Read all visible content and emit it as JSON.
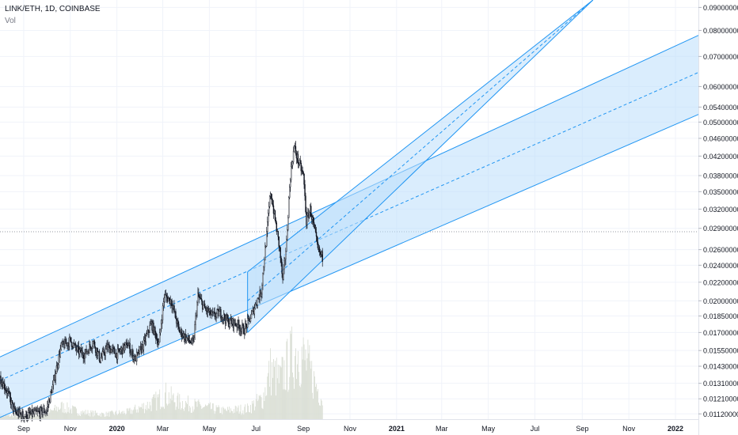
{
  "header": {
    "symbol_line": "LINK/ETH, 1D, COINBASE",
    "indicator": "Vol"
  },
  "colors": {
    "grid": "#f0f3fa",
    "channel_line": "#2196f3",
    "channel_fill": "#bbdefb",
    "candle": "#131722",
    "volume": "#d6dbd0",
    "axis_text": "#131722",
    "price_marker_line": "#9598a1"
  },
  "chart_data": {
    "type": "candlestick",
    "x_axis": {
      "tick_labels": [
        "Sep",
        "Nov",
        "2020",
        "Mar",
        "May",
        "Jul",
        "Sep",
        "Nov",
        "2021",
        "Mar",
        "May",
        "Jul",
        "Sep",
        "Nov",
        "2022"
      ],
      "range": [
        "2019-08-01",
        "2022-01-31"
      ]
    },
    "y_axis": {
      "scale": "log",
      "range": [
        0.0109,
        0.0935
      ],
      "tick_labels": [
        "0.01120000",
        "0.01210000",
        "0.01310000",
        "0.01430000",
        "0.01550000",
        "0.01700000",
        "0.01850000",
        "0.02000000",
        "0.02200000",
        "0.02400000",
        "0.02600000",
        "0.02900000",
        "0.03200000",
        "0.03500000",
        "0.03800000",
        "0.04200000",
        "0.04600000",
        "0.05000000",
        "0.05400000",
        "0.06000000",
        "0.07000000",
        "0.08000000",
        "0.09000000"
      ]
    },
    "price_series": [
      [
        "2019-08-01",
        0.0135
      ],
      [
        "2019-08-10",
        0.0126
      ],
      [
        "2019-08-20",
        0.0113
      ],
      [
        "2019-09-01",
        0.0111
      ],
      [
        "2019-09-15",
        0.0112
      ],
      [
        "2019-10-01",
        0.0114
      ],
      [
        "2019-10-10",
        0.0131
      ],
      [
        "2019-10-20",
        0.0158
      ],
      [
        "2019-11-01",
        0.0163
      ],
      [
        "2019-11-10",
        0.0155
      ],
      [
        "2019-11-20",
        0.0152
      ],
      [
        "2019-12-01",
        0.0162
      ],
      [
        "2019-12-10",
        0.0148
      ],
      [
        "2019-12-20",
        0.0158
      ],
      [
        "2020-01-01",
        0.0152
      ],
      [
        "2020-01-15",
        0.016
      ],
      [
        "2020-01-25",
        0.0148
      ],
      [
        "2020-02-05",
        0.016
      ],
      [
        "2020-02-15",
        0.0178
      ],
      [
        "2020-02-25",
        0.016
      ],
      [
        "2020-03-03",
        0.0205
      ],
      [
        "2020-03-12",
        0.02
      ],
      [
        "2020-03-22",
        0.0172
      ],
      [
        "2020-04-01",
        0.0165
      ],
      [
        "2020-04-10",
        0.016
      ],
      [
        "2020-04-16",
        0.0205
      ],
      [
        "2020-04-25",
        0.0192
      ],
      [
        "2020-05-05",
        0.0185
      ],
      [
        "2020-05-15",
        0.0188
      ],
      [
        "2020-05-25",
        0.018
      ],
      [
        "2020-06-05",
        0.0178
      ],
      [
        "2020-06-15",
        0.0172
      ],
      [
        "2020-06-25",
        0.0185
      ],
      [
        "2020-07-01",
        0.0198
      ],
      [
        "2020-07-08",
        0.021
      ],
      [
        "2020-07-15",
        0.028
      ],
      [
        "2020-07-20",
        0.035
      ],
      [
        "2020-07-25",
        0.031
      ],
      [
        "2020-08-01",
        0.026
      ],
      [
        "2020-08-05",
        0.022
      ],
      [
        "2020-08-10",
        0.027
      ],
      [
        "2020-08-15",
        0.038
      ],
      [
        "2020-08-20",
        0.044
      ],
      [
        "2020-08-25",
        0.041
      ],
      [
        "2020-09-01",
        0.038
      ],
      [
        "2020-09-05",
        0.03
      ],
      [
        "2020-09-10",
        0.032
      ],
      [
        "2020-09-15",
        0.029
      ],
      [
        "2020-09-20",
        0.026
      ],
      [
        "2020-09-26",
        0.025
      ]
    ],
    "volume_series": [
      [
        "2019-08-01",
        0.05
      ],
      [
        "2019-09-01",
        0.05
      ],
      [
        "2019-10-01",
        0.08
      ],
      [
        "2019-10-20",
        0.18
      ],
      [
        "2019-11-15",
        0.1
      ],
      [
        "2019-12-15",
        0.07
      ],
      [
        "2020-01-15",
        0.1
      ],
      [
        "2020-02-15",
        0.22
      ],
      [
        "2020-03-05",
        0.35
      ],
      [
        "2020-03-20",
        0.25
      ],
      [
        "2020-04-20",
        0.18
      ],
      [
        "2020-05-20",
        0.12
      ],
      [
        "2020-06-20",
        0.15
      ],
      [
        "2020-07-10",
        0.3
      ],
      [
        "2020-07-20",
        0.7
      ],
      [
        "2020-08-01",
        0.55
      ],
      [
        "2020-08-15",
        0.85
      ],
      [
        "2020-08-25",
        1.0
      ],
      [
        "2020-09-05",
        0.8
      ],
      [
        "2020-09-15",
        0.55
      ],
      [
        "2020-09-26",
        0.3
      ]
    ],
    "channels": [
      {
        "start": "2019-08-01",
        "end": "2022-01-31",
        "upper": [
          0.015,
          0.078
        ],
        "mid": [
          0.0133,
          0.0645
        ],
        "lower": [
          0.011,
          0.052
        ]
      },
      {
        "start": "2020-06-20",
        "end": "2021-09-15",
        "upper": [
          0.0232,
          0.0935
        ],
        "mid": [
          0.02,
          0.0935
        ],
        "lower": [
          0.017,
          0.0935
        ]
      }
    ],
    "price_marker": 0.0285
  }
}
